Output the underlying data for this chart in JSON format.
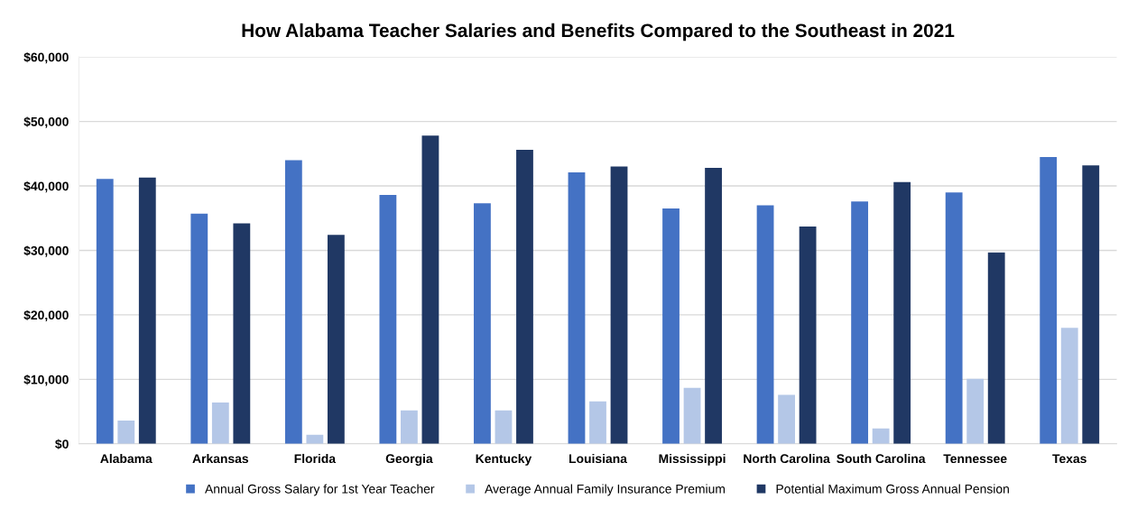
{
  "chart_data": {
    "type": "bar",
    "title": "How Alabama Teacher Salaries and Benefits Compared to the Southeast in 2021",
    "categories": [
      "Alabama",
      "Arkansas",
      "Florida",
      "Georgia",
      "Kentucky",
      "Louisiana",
      "Mississippi",
      "North Carolina",
      "South Carolina",
      "Tennessee",
      "Texas"
    ],
    "series": [
      {
        "name": "Annual Gross Salary for 1st Year Teacher",
        "color": "#4472c4",
        "values": [
          41100,
          35700,
          44000,
          38600,
          37300,
          42100,
          36500,
          37000,
          37600,
          39000,
          44500
        ]
      },
      {
        "name": "Average Annual Family Insurance Premium",
        "color": "#b4c7e7",
        "values": [
          3600,
          6400,
          1400,
          5200,
          5200,
          6600,
          8700,
          7600,
          2400,
          10100,
          18000
        ]
      },
      {
        "name": "Potential Maximum Gross Annual Pension",
        "color": "#203864",
        "values": [
          41300,
          34200,
          32400,
          47800,
          45600,
          43000,
          42800,
          33700,
          40600,
          29700,
          43200
        ]
      }
    ],
    "ylim": [
      0,
      60000
    ],
    "yticks": [
      {
        "value": 0,
        "label": "$0"
      },
      {
        "value": 10000,
        "label": "$10,000"
      },
      {
        "value": 20000,
        "label": "$20,000"
      },
      {
        "value": 30000,
        "label": "$30,000"
      },
      {
        "value": 40000,
        "label": "$40,000"
      },
      {
        "value": 50000,
        "label": "$50,000"
      },
      {
        "value": 60000,
        "label": "$60,000"
      }
    ],
    "grid": "y",
    "legend": "bottom"
  }
}
